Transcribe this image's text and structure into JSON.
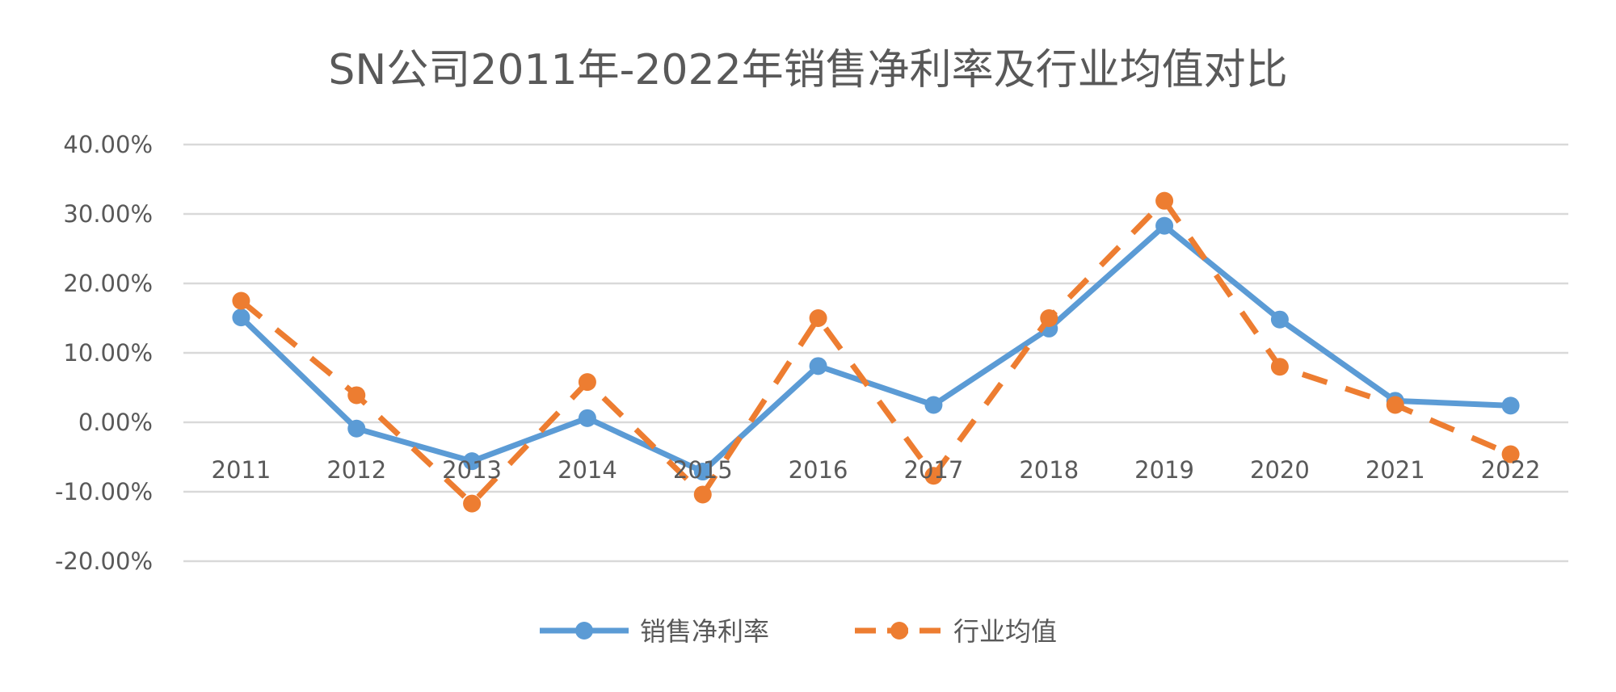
{
  "chart_data": {
    "type": "line",
    "title": "SN公司2011年-2022年销售净利率及行业均值对比",
    "xlabel": "",
    "ylabel": "",
    "categories": [
      "2011",
      "2012",
      "2013",
      "2014",
      "2015",
      "2016",
      "2017",
      "2018",
      "2019",
      "2020",
      "2021",
      "2022"
    ],
    "ylim": [
      -0.2,
      0.4
    ],
    "yticks": [
      0.4,
      0.3,
      0.2,
      0.1,
      0.0,
      -0.1,
      -0.2
    ],
    "ytick_labels": [
      "40.00%",
      "30.00%",
      "20.00%",
      "10.00%",
      "0.00%",
      "-10.00%",
      "-20.00%"
    ],
    "grid": true,
    "legend_position": "bottom",
    "series": [
      {
        "name": "销售净利率",
        "color": "#5B9BD5",
        "style": "solid",
        "values": [
          0.151,
          -0.009,
          -0.056,
          0.006,
          -0.071,
          0.081,
          0.025,
          0.135,
          0.283,
          0.148,
          0.031,
          0.024
        ]
      },
      {
        "name": "行业均值",
        "color": "#ED7D31",
        "style": "dashed",
        "values": [
          0.175,
          0.039,
          -0.117,
          0.058,
          -0.104,
          0.15,
          -0.077,
          0.15,
          0.319,
          0.08,
          0.025,
          -0.046
        ]
      }
    ]
  }
}
